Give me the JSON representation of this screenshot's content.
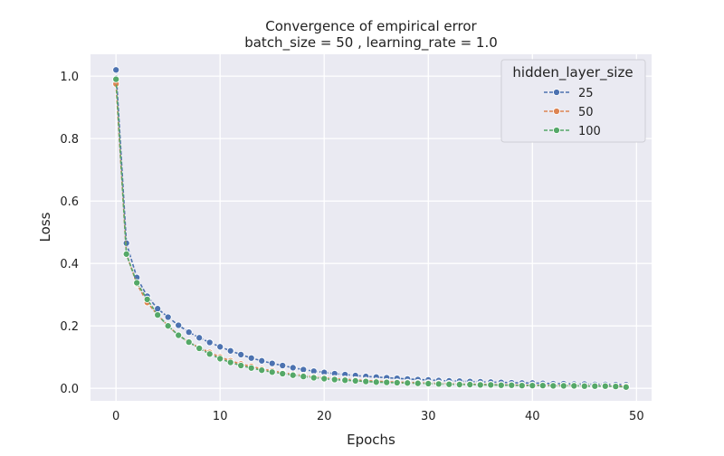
{
  "chart_data": {
    "type": "line",
    "title": "Convergence of empirical error",
    "subtitle": "batch_size = 50 , learning_rate = 1.0",
    "xlabel": "Epochs",
    "ylabel": "Loss",
    "xlim": [
      -2.45,
      51.45
    ],
    "ylim": [
      -0.04,
      1.07
    ],
    "xticks": [
      0,
      10,
      20,
      30,
      40,
      50
    ],
    "yticks": [
      0.0,
      0.2,
      0.4,
      0.6,
      0.8,
      1.0
    ],
    "grid": true,
    "legend": {
      "title": "hidden_layer_size",
      "placement": "top-right"
    },
    "x": [
      0,
      1,
      2,
      3,
      4,
      5,
      6,
      7,
      8,
      9,
      10,
      11,
      12,
      13,
      14,
      15,
      16,
      17,
      18,
      19,
      20,
      21,
      22,
      23,
      24,
      25,
      26,
      27,
      28,
      29,
      30,
      31,
      32,
      33,
      34,
      35,
      36,
      37,
      38,
      39,
      40,
      41,
      42,
      43,
      44,
      45,
      46,
      47,
      48,
      49
    ],
    "series": [
      {
        "name": "25",
        "color": "#4c72b0",
        "values": [
          1.02,
          0.465,
          0.355,
          0.295,
          0.255,
          0.228,
          0.202,
          0.18,
          0.162,
          0.147,
          0.133,
          0.12,
          0.108,
          0.097,
          0.088,
          0.08,
          0.073,
          0.066,
          0.06,
          0.055,
          0.051,
          0.047,
          0.044,
          0.041,
          0.038,
          0.036,
          0.034,
          0.032,
          0.03,
          0.028,
          0.027,
          0.025,
          0.024,
          0.023,
          0.022,
          0.021,
          0.02,
          0.019,
          0.018,
          0.017,
          0.017,
          0.016,
          0.015,
          0.015,
          0.014,
          0.014,
          0.013,
          0.013,
          0.012,
          0.012
        ]
      },
      {
        "name": "50",
        "color": "#dd8452",
        "values": [
          0.975,
          0.43,
          0.335,
          0.275,
          0.235,
          0.2,
          0.17,
          0.148,
          0.13,
          0.115,
          0.1,
          0.088,
          0.078,
          0.07,
          0.062,
          0.056,
          0.05,
          0.045,
          0.041,
          0.037,
          0.034,
          0.031,
          0.029,
          0.027,
          0.025,
          0.023,
          0.021,
          0.02,
          0.019,
          0.018,
          0.017,
          0.016,
          0.015,
          0.014,
          0.013,
          0.013,
          0.012,
          0.011,
          0.011,
          0.01,
          0.01,
          0.01,
          0.009,
          0.009,
          0.009,
          0.008,
          0.008,
          0.008,
          0.007,
          0.007
        ]
      },
      {
        "name": "100",
        "color": "#55a868",
        "values": [
          0.99,
          0.43,
          0.338,
          0.285,
          0.235,
          0.2,
          0.17,
          0.148,
          0.128,
          0.11,
          0.095,
          0.083,
          0.073,
          0.065,
          0.058,
          0.052,
          0.047,
          0.042,
          0.038,
          0.034,
          0.031,
          0.028,
          0.026,
          0.024,
          0.022,
          0.02,
          0.019,
          0.018,
          0.017,
          0.016,
          0.015,
          0.014,
          0.013,
          0.012,
          0.012,
          0.011,
          0.011,
          0.01,
          0.01,
          0.009,
          0.009,
          0.009,
          0.008,
          0.008,
          0.008,
          0.007,
          0.007,
          0.007,
          0.006,
          0.004
        ]
      }
    ]
  }
}
